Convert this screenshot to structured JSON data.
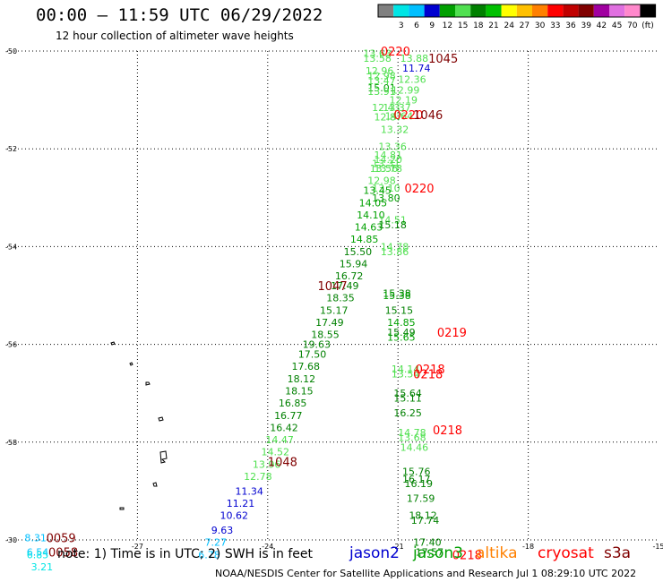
{
  "header": {
    "title": "00:00 – 11:59 UTC 06/29/2022",
    "subtitle": "12 hour collection of altimeter wave heights"
  },
  "colorbar": {
    "colors": [
      "#808080",
      "#00e5e5",
      "#00bfff",
      "#0000d0",
      "#00a000",
      "#50e050",
      "#008000",
      "#00c000",
      "#ffff00",
      "#ffc000",
      "#ff8000",
      "#ff0000",
      "#c00000",
      "#800000",
      "#a000a0",
      "#e070e0",
      "#ff88cc",
      "#000000"
    ],
    "labels": [
      "3",
      "6",
      "9",
      "12",
      "15",
      "18",
      "21",
      "24",
      "27",
      "30",
      "33",
      "36",
      "39",
      "42",
      "45",
      "70"
    ],
    "unit": "(ft)"
  },
  "chart_data": {
    "type": "scatter",
    "title": "00:00 – 11:59 UTC 06/29/2022",
    "subtitle": "12 hour collection of altimeter wave heights",
    "xlim": [
      -30,
      -15
    ],
    "ylim": [
      -60,
      -50
    ],
    "x_ticks": [
      "-27",
      "-24",
      "-21",
      "-18",
      "-15"
    ],
    "y_ticks": [
      "-50",
      "-52",
      "-54",
      "-56",
      "-58",
      "-30"
    ],
    "grid": true,
    "wave_heights": [
      {
        "x": -21.8,
        "y": -50.05,
        "v": "13.63",
        "c": "#50e050"
      },
      {
        "x": -21.8,
        "y": -50.15,
        "v": "13.58",
        "c": "#50e050"
      },
      {
        "x": -20.95,
        "y": -50.15,
        "v": "13.88",
        "c": "#50e050"
      },
      {
        "x": -20.9,
        "y": -50.35,
        "v": "11.74",
        "c": "#0000d0"
      },
      {
        "x": -21.75,
        "y": -50.4,
        "v": "12.96",
        "c": "#50e050"
      },
      {
        "x": -21.7,
        "y": -50.5,
        "v": "12.98",
        "c": "#50e050"
      },
      {
        "x": -21.7,
        "y": -50.6,
        "v": "13.47",
        "c": "#50e050"
      },
      {
        "x": -21.0,
        "y": -50.58,
        "v": "12.36",
        "c": "#50e050"
      },
      {
        "x": -21.7,
        "y": -50.75,
        "v": "15.01",
        "c": "#00a000"
      },
      {
        "x": -21.7,
        "y": -50.82,
        "v": "13.91",
        "c": "#50e050"
      },
      {
        "x": -21.15,
        "y": -50.8,
        "v": "12.99",
        "c": "#50e050"
      },
      {
        "x": -21.2,
        "y": -51.0,
        "v": "12.19",
        "c": "#50e050"
      },
      {
        "x": -21.6,
        "y": -51.15,
        "v": "12.43",
        "c": "#50e050"
      },
      {
        "x": -21.35,
        "y": -51.15,
        "v": "13.37",
        "c": "#50e050"
      },
      {
        "x": -21.55,
        "y": -51.35,
        "v": "12.87",
        "c": "#50e050"
      },
      {
        "x": -21.3,
        "y": -51.33,
        "v": "14.64",
        "c": "#50e050"
      },
      {
        "x": -21.4,
        "y": -51.6,
        "v": "13.32",
        "c": "#50e050"
      },
      {
        "x": -21.45,
        "y": -51.95,
        "v": "13.36",
        "c": "#50e050"
      },
      {
        "x": -21.55,
        "y": -52.12,
        "v": "14.81",
        "c": "#50e050"
      },
      {
        "x": -21.55,
        "y": -52.22,
        "v": "14.20",
        "c": "#50e050"
      },
      {
        "x": -21.6,
        "y": -52.3,
        "v": "13.31",
        "c": "#50e050"
      },
      {
        "x": -21.55,
        "y": -52.4,
        "v": "13.78",
        "c": "#50e050"
      },
      {
        "x": -21.65,
        "y": -52.4,
        "v": "13.56",
        "c": "#50e050"
      },
      {
        "x": -21.7,
        "y": -52.65,
        "v": "12.98",
        "c": "#50e050"
      },
      {
        "x": -21.6,
        "y": -52.8,
        "v": "13.10",
        "c": "#50e050"
      },
      {
        "x": -21.8,
        "y": -52.85,
        "v": "13.45",
        "c": "#00a000"
      },
      {
        "x": -21.6,
        "y": -53.0,
        "v": "13.80",
        "c": "#00a000"
      },
      {
        "x": -21.9,
        "y": -53.1,
        "v": "14.05",
        "c": "#00a000"
      },
      {
        "x": -21.95,
        "y": -53.35,
        "v": "14.10",
        "c": "#00a000"
      },
      {
        "x": -21.45,
        "y": -53.45,
        "v": "14.51",
        "c": "#50e050"
      },
      {
        "x": -21.45,
        "y": -53.55,
        "v": "15.18",
        "c": "#008000"
      },
      {
        "x": -22.0,
        "y": -53.6,
        "v": "14.63",
        "c": "#00a000"
      },
      {
        "x": -22.1,
        "y": -53.85,
        "v": "14.85",
        "c": "#00a000"
      },
      {
        "x": -21.4,
        "y": -54.0,
        "v": "14.78",
        "c": "#50e050"
      },
      {
        "x": -21.4,
        "y": -54.1,
        "v": "13.86",
        "c": "#50e050"
      },
      {
        "x": -22.25,
        "y": -54.1,
        "v": "15.50",
        "c": "#008000"
      },
      {
        "x": -22.35,
        "y": -54.35,
        "v": "15.94",
        "c": "#008000"
      },
      {
        "x": -22.45,
        "y": -54.6,
        "v": "16.72",
        "c": "#008000"
      },
      {
        "x": -22.55,
        "y": -54.8,
        "v": "17.49",
        "c": "#008000"
      },
      {
        "x": -21.35,
        "y": -54.95,
        "v": "15.38",
        "c": "#008000"
      },
      {
        "x": -22.65,
        "y": -55.05,
        "v": "18.35",
        "c": "#008000"
      },
      {
        "x": -21.35,
        "y": -55.0,
        "v": "15.38",
        "c": "#00a000"
      },
      {
        "x": -22.8,
        "y": -55.3,
        "v": "15.17",
        "c": "#008000"
      },
      {
        "x": -21.3,
        "y": -55.3,
        "v": "15.15",
        "c": "#008000"
      },
      {
        "x": -22.9,
        "y": -55.55,
        "v": "17.49",
        "c": "#008000"
      },
      {
        "x": -21.25,
        "y": -55.55,
        "v": "14.85",
        "c": "#00a000"
      },
      {
        "x": -23.0,
        "y": -55.8,
        "v": "18.55",
        "c": "#008000"
      },
      {
        "x": -21.25,
        "y": -55.75,
        "v": "15.49",
        "c": "#008000"
      },
      {
        "x": -21.25,
        "y": -55.85,
        "v": "15.65",
        "c": "#00a000"
      },
      {
        "x": -23.2,
        "y": -56.0,
        "v": "19.63",
        "c": "#008000"
      },
      {
        "x": -23.3,
        "y": -56.2,
        "v": "17.50",
        "c": "#008000"
      },
      {
        "x": -23.45,
        "y": -56.45,
        "v": "17.68",
        "c": "#008000"
      },
      {
        "x": -21.15,
        "y": -56.5,
        "v": "14.14",
        "c": "#50e050"
      },
      {
        "x": -21.15,
        "y": -56.6,
        "v": "13.54",
        "c": "#50e050"
      },
      {
        "x": -23.55,
        "y": -56.7,
        "v": "18.12",
        "c": "#008000"
      },
      {
        "x": -23.6,
        "y": -56.95,
        "v": "18.15",
        "c": "#008000"
      },
      {
        "x": -21.1,
        "y": -57.0,
        "v": "15.64",
        "c": "#008000"
      },
      {
        "x": -21.1,
        "y": -57.1,
        "v": "15.11",
        "c": "#008000"
      },
      {
        "x": -23.75,
        "y": -57.2,
        "v": "16.85",
        "c": "#008000"
      },
      {
        "x": -21.1,
        "y": -57.4,
        "v": "16.25",
        "c": "#008000"
      },
      {
        "x": -23.85,
        "y": -57.45,
        "v": "16.77",
        "c": "#008000"
      },
      {
        "x": -23.95,
        "y": -57.7,
        "v": "16.42",
        "c": "#008000"
      },
      {
        "x": -21.0,
        "y": -57.8,
        "v": "14.78",
        "c": "#50e050"
      },
      {
        "x": -21.0,
        "y": -57.9,
        "v": "13.68",
        "c": "#50e050"
      },
      {
        "x": -24.05,
        "y": -57.95,
        "v": "14.47",
        "c": "#50e050"
      },
      {
        "x": -24.15,
        "y": -58.2,
        "v": "14.52",
        "c": "#50e050"
      },
      {
        "x": -20.95,
        "y": -58.1,
        "v": "14.46",
        "c": "#50e050"
      },
      {
        "x": -24.35,
        "y": -58.45,
        "v": "13.96",
        "c": "#50e050"
      },
      {
        "x": -24.55,
        "y": -58.7,
        "v": "12.78",
        "c": "#50e050"
      },
      {
        "x": -20.9,
        "y": -58.6,
        "v": "15.76",
        "c": "#008000"
      },
      {
        "x": -20.9,
        "y": -58.75,
        "v": "16.17",
        "c": "#008000"
      },
      {
        "x": -20.85,
        "y": -58.85,
        "v": "16.19",
        "c": "#008000"
      },
      {
        "x": -24.75,
        "y": -59.0,
        "v": "11.34",
        "c": "#0000d0"
      },
      {
        "x": -20.8,
        "y": -59.15,
        "v": "17.59",
        "c": "#008000"
      },
      {
        "x": -24.95,
        "y": -59.25,
        "v": "11.21",
        "c": "#0000d0"
      },
      {
        "x": -25.1,
        "y": -59.5,
        "v": "10.62",
        "c": "#0000d0"
      },
      {
        "x": -20.75,
        "y": -59.5,
        "v": "18.12",
        "c": "#008000"
      },
      {
        "x": -20.7,
        "y": -59.6,
        "v": "17.74",
        "c": "#008000"
      },
      {
        "x": -25.3,
        "y": -59.8,
        "v": "9.63",
        "c": "#0000d0"
      },
      {
        "x": -25.45,
        "y": -60.05,
        "v": "7.27",
        "c": "#00bfff"
      },
      {
        "x": -20.65,
        "y": -60.05,
        "v": "17.40",
        "c": "#008000"
      },
      {
        "x": -25.6,
        "y": -60.3,
        "v": "6.78",
        "c": "#00bfff"
      },
      {
        "x": -20.6,
        "y": -60.25,
        "v": "17.57",
        "c": "#008000"
      },
      {
        "x": -29.6,
        "y": -59.95,
        "v": "8.31",
        "c": "#00bfff"
      },
      {
        "x": -29.55,
        "y": -60.25,
        "v": "6.54",
        "c": "#00bfff"
      },
      {
        "x": -29.55,
        "y": -60.3,
        "v": "6.85",
        "c": "#00e5e5"
      },
      {
        "x": -29.45,
        "y": -60.55,
        "v": "3.21",
        "c": "#00e5e5"
      }
    ],
    "time_labels": [
      {
        "x": -21.4,
        "y": -50.0,
        "v": "0220",
        "c": "#ff0000"
      },
      {
        "x": -20.3,
        "y": -50.15,
        "v": "1045",
        "c": "#800000"
      },
      {
        "x": -21.1,
        "y": -51.3,
        "v": "0220",
        "c": "#ff0000"
      },
      {
        "x": -20.65,
        "y": -51.3,
        "v": "1046",
        "c": "#800000"
      },
      {
        "x": -20.85,
        "y": -52.8,
        "v": "0220",
        "c": "#ff0000"
      },
      {
        "x": -22.85,
        "y": -54.8,
        "v": "1047",
        "c": "#800000"
      },
      {
        "x": -20.1,
        "y": -55.75,
        "v": "0219",
        "c": "#ff0000"
      },
      {
        "x": -20.6,
        "y": -56.5,
        "v": "0218",
        "c": "#ff0000"
      },
      {
        "x": -20.65,
        "y": -56.6,
        "v": "0218",
        "c": "#ff0000"
      },
      {
        "x": -20.2,
        "y": -57.75,
        "v": "0218",
        "c": "#ff0000"
      },
      {
        "x": -24.0,
        "y": -58.4,
        "v": "1048",
        "c": "#800000"
      },
      {
        "x": -19.75,
        "y": -60.3,
        "v": "0218",
        "c": "#ff0000"
      },
      {
        "x": -29.1,
        "y": -59.95,
        "v": "0059",
        "c": "#800000"
      },
      {
        "x": -29.05,
        "y": -60.25,
        "v": "0058",
        "c": "#800000"
      }
    ]
  },
  "footer": {
    "note": "note:  1) Time is in UTC;  2) SWH is in feet",
    "satellites": [
      {
        "name": "jason2",
        "color": "#0000d0"
      },
      {
        "name": "jason3",
        "color": "#00a000"
      },
      {
        "name": "altika",
        "color": "#ff8000"
      },
      {
        "name": "cryosat",
        "color": "#ff0000"
      },
      {
        "name": "s3a",
        "color": "#800000"
      }
    ],
    "credit": "NOAA/NESDIS Center for Satellite Applications and Research     Jul  1 08:29:10 UTC 2022"
  }
}
